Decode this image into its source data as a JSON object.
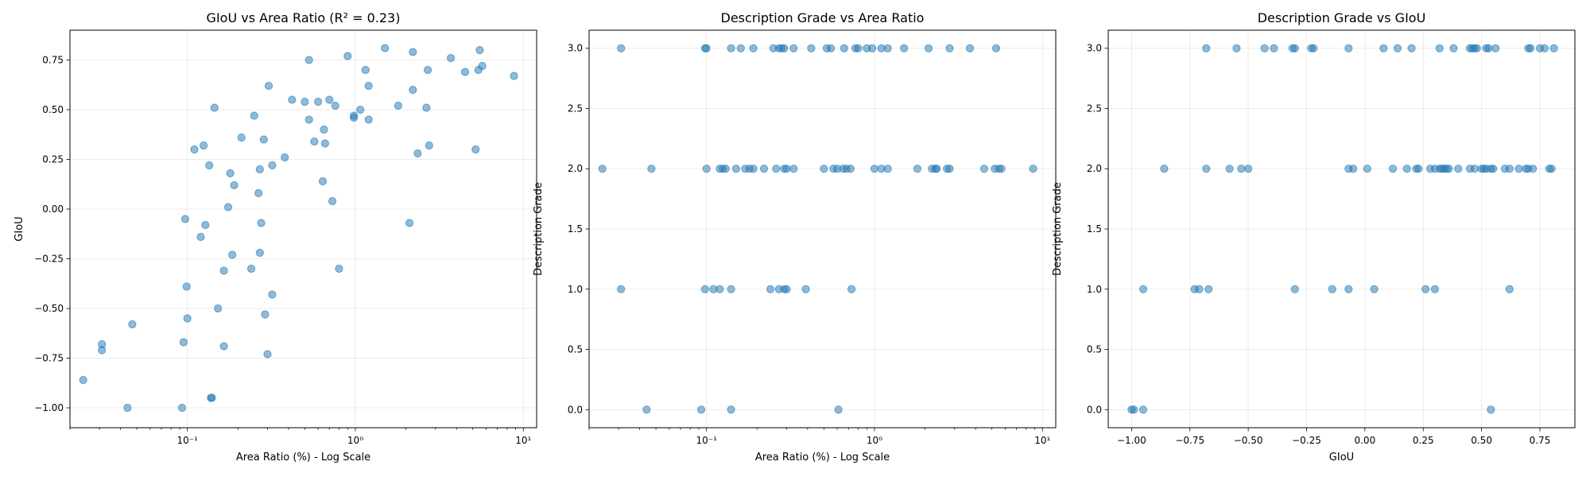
{
  "chart_data": [
    {
      "type": "scatter",
      "title": "GIoU vs Area Ratio (R² = 0.23)",
      "xlabel": "Area Ratio (%) - Log Scale",
      "ylabel": "GIoU",
      "xscale": "log",
      "xlim": [
        0.02,
        12
      ],
      "ylim": [
        -1.1,
        0.9
      ],
      "xticks": [
        0.1,
        1,
        10
      ],
      "xticklabels": [
        "10⁻¹",
        "10⁰",
        "10¹"
      ],
      "yticks": [
        -1.0,
        -0.75,
        -0.5,
        -0.25,
        0.0,
        0.25,
        0.5,
        0.75
      ],
      "yticklabels": [
        "−1.00",
        "−0.75",
        "−0.50",
        "−0.25",
        "0.00",
        "0.25",
        "0.50",
        "0.75"
      ],
      "grid": true,
      "color": "#1f77b4",
      "points": [
        [
          0.024,
          -0.86
        ],
        [
          0.031,
          -0.68
        ],
        [
          0.031,
          -0.71
        ],
        [
          0.044,
          -1.0
        ],
        [
          0.047,
          -0.58
        ],
        [
          0.093,
          -1.0
        ],
        [
          0.095,
          -0.67
        ],
        [
          0.097,
          -0.05
        ],
        [
          0.099,
          -0.39
        ],
        [
          0.1,
          -0.55
        ],
        [
          0.11,
          0.3
        ],
        [
          0.12,
          -0.14
        ],
        [
          0.125,
          0.32
        ],
        [
          0.128,
          -0.08
        ],
        [
          0.135,
          0.22
        ],
        [
          0.138,
          -0.95
        ],
        [
          0.14,
          -0.95
        ],
        [
          0.145,
          0.51
        ],
        [
          0.152,
          -0.5
        ],
        [
          0.165,
          -0.31
        ],
        [
          0.165,
          -0.69
        ],
        [
          0.175,
          0.01
        ],
        [
          0.18,
          0.18
        ],
        [
          0.185,
          -0.23
        ],
        [
          0.19,
          0.12
        ],
        [
          0.21,
          0.36
        ],
        [
          0.24,
          -0.3
        ],
        [
          0.25,
          0.47
        ],
        [
          0.265,
          0.08
        ],
        [
          0.27,
          -0.22
        ],
        [
          0.27,
          0.2
        ],
        [
          0.275,
          -0.07
        ],
        [
          0.285,
          0.35
        ],
        [
          0.29,
          -0.53
        ],
        [
          0.3,
          -0.73
        ],
        [
          0.305,
          0.62
        ],
        [
          0.32,
          -0.43
        ],
        [
          0.32,
          0.22
        ],
        [
          0.38,
          0.26
        ],
        [
          0.42,
          0.55
        ],
        [
          0.5,
          0.54
        ],
        [
          0.53,
          0.75
        ],
        [
          0.53,
          0.45
        ],
        [
          0.57,
          0.34
        ],
        [
          0.6,
          0.54
        ],
        [
          0.64,
          0.14
        ],
        [
          0.65,
          0.4
        ],
        [
          0.66,
          0.33
        ],
        [
          0.7,
          0.55
        ],
        [
          0.73,
          0.04
        ],
        [
          0.76,
          0.52
        ],
        [
          0.8,
          -0.3
        ],
        [
          0.9,
          0.77
        ],
        [
          0.98,
          0.47
        ],
        [
          0.98,
          0.46
        ],
        [
          1.07,
          0.5
        ],
        [
          1.15,
          0.7
        ],
        [
          1.2,
          0.45
        ],
        [
          1.2,
          0.62
        ],
        [
          1.5,
          0.81
        ],
        [
          1.8,
          0.52
        ],
        [
          2.1,
          -0.07
        ],
        [
          2.2,
          0.79
        ],
        [
          2.2,
          0.6
        ],
        [
          2.35,
          0.28
        ],
        [
          2.65,
          0.51
        ],
        [
          2.7,
          0.7
        ],
        [
          2.75,
          0.32
        ],
        [
          3.7,
          0.76
        ],
        [
          4.5,
          0.69
        ],
        [
          5.2,
          0.3
        ],
        [
          5.4,
          0.7
        ],
        [
          5.5,
          0.8
        ],
        [
          5.7,
          0.72
        ],
        [
          8.8,
          0.67
        ]
      ]
    },
    {
      "type": "scatter",
      "title": "Description Grade vs Area Ratio",
      "xlabel": "Area Ratio (%) - Log Scale",
      "ylabel": "Description Grade",
      "xscale": "log",
      "xlim": [
        0.02,
        12
      ],
      "ylim": [
        -0.15,
        3.15
      ],
      "xticks": [
        0.1,
        1,
        10
      ],
      "xticklabels": [
        "10⁻¹",
        "10⁰",
        "10¹"
      ],
      "yticks": [
        0.0,
        0.5,
        1.0,
        1.5,
        2.0,
        2.5,
        3.0
      ],
      "yticklabels": [
        "0.0",
        "0.5",
        "1.0",
        "1.5",
        "2.0",
        "2.5",
        "3.0"
      ],
      "grid": true,
      "color": "#1f77b4",
      "points": [
        [
          0.031,
          3
        ],
        [
          0.098,
          3
        ],
        [
          0.1,
          3
        ],
        [
          0.14,
          3
        ],
        [
          0.16,
          3
        ],
        [
          0.19,
          3
        ],
        [
          0.25,
          3
        ],
        [
          0.27,
          3
        ],
        [
          0.28,
          3
        ],
        [
          0.29,
          3
        ],
        [
          0.33,
          3
        ],
        [
          0.42,
          3
        ],
        [
          0.52,
          3
        ],
        [
          0.55,
          3
        ],
        [
          0.66,
          3
        ],
        [
          0.77,
          3
        ],
        [
          0.8,
          3
        ],
        [
          0.9,
          3
        ],
        [
          0.97,
          3
        ],
        [
          1.1,
          3
        ],
        [
          1.2,
          3
        ],
        [
          1.5,
          3
        ],
        [
          2.1,
          3
        ],
        [
          2.8,
          3
        ],
        [
          3.7,
          3
        ],
        [
          5.3,
          3
        ],
        [
          0.024,
          2
        ],
        [
          0.047,
          2
        ],
        [
          0.1,
          2
        ],
        [
          0.12,
          2
        ],
        [
          0.125,
          2
        ],
        [
          0.13,
          2
        ],
        [
          0.15,
          2
        ],
        [
          0.17,
          2
        ],
        [
          0.18,
          2
        ],
        [
          0.19,
          2
        ],
        [
          0.22,
          2
        ],
        [
          0.26,
          2
        ],
        [
          0.29,
          2
        ],
        [
          0.3,
          2
        ],
        [
          0.33,
          2
        ],
        [
          0.5,
          2
        ],
        [
          0.57,
          2
        ],
        [
          0.6,
          2
        ],
        [
          0.65,
          2
        ],
        [
          0.68,
          2
        ],
        [
          0.72,
          2
        ],
        [
          1.0,
          2
        ],
        [
          1.1,
          2
        ],
        [
          1.2,
          2
        ],
        [
          1.8,
          2
        ],
        [
          2.2,
          2
        ],
        [
          2.3,
          2
        ],
        [
          2.35,
          2
        ],
        [
          2.7,
          2
        ],
        [
          2.8,
          2
        ],
        [
          4.5,
          2
        ],
        [
          5.2,
          2
        ],
        [
          5.5,
          2
        ],
        [
          5.7,
          2
        ],
        [
          8.8,
          2
        ],
        [
          0.031,
          1
        ],
        [
          0.098,
          1
        ],
        [
          0.11,
          1
        ],
        [
          0.12,
          1
        ],
        [
          0.14,
          1
        ],
        [
          0.24,
          1
        ],
        [
          0.27,
          1
        ],
        [
          0.29,
          1
        ],
        [
          0.3,
          1
        ],
        [
          0.39,
          1
        ],
        [
          0.73,
          1
        ],
        [
          0.044,
          0
        ],
        [
          0.093,
          0
        ],
        [
          0.14,
          0
        ],
        [
          0.61,
          0
        ]
      ]
    },
    {
      "type": "scatter",
      "title": "Description Grade vs GIoU",
      "xlabel": "GIoU",
      "ylabel": "Description Grade",
      "xscale": "linear",
      "xlim": [
        -1.1,
        0.9
      ],
      "ylim": [
        -0.15,
        3.15
      ],
      "xticks": [
        -1.0,
        -0.75,
        -0.5,
        -0.25,
        0.0,
        0.25,
        0.5,
        0.75
      ],
      "xticklabels": [
        "−1.00",
        "−0.75",
        "−0.50",
        "−0.25",
        "0.00",
        "0.25",
        "0.50",
        "0.75"
      ],
      "yticks": [
        0.0,
        0.5,
        1.0,
        1.5,
        2.0,
        2.5,
        3.0
      ],
      "yticklabels": [
        "0.0",
        "0.5",
        "1.0",
        "1.5",
        "2.0",
        "2.5",
        "3.0"
      ],
      "grid": true,
      "color": "#1f77b4",
      "points": [
        [
          -0.68,
          3
        ],
        [
          -0.55,
          3
        ],
        [
          -0.43,
          3
        ],
        [
          -0.39,
          3
        ],
        [
          -0.31,
          3
        ],
        [
          -0.3,
          3
        ],
        [
          -0.23,
          3
        ],
        [
          -0.22,
          3
        ],
        [
          -0.07,
          3
        ],
        [
          0.08,
          3
        ],
        [
          0.14,
          3
        ],
        [
          0.2,
          3
        ],
        [
          0.32,
          3
        ],
        [
          0.38,
          3
        ],
        [
          0.45,
          3
        ],
        [
          0.46,
          3
        ],
        [
          0.47,
          3
        ],
        [
          0.48,
          3
        ],
        [
          0.52,
          3
        ],
        [
          0.53,
          3
        ],
        [
          0.56,
          3
        ],
        [
          0.7,
          3
        ],
        [
          0.71,
          3
        ],
        [
          0.75,
          3
        ],
        [
          0.77,
          3
        ],
        [
          0.81,
          3
        ],
        [
          -0.86,
          2
        ],
        [
          -0.68,
          2
        ],
        [
          -0.58,
          2
        ],
        [
          -0.53,
          2
        ],
        [
          -0.5,
          2
        ],
        [
          -0.07,
          2
        ],
        [
          -0.05,
          2
        ],
        [
          0.01,
          2
        ],
        [
          0.12,
          2
        ],
        [
          0.18,
          2
        ],
        [
          0.22,
          2
        ],
        [
          0.23,
          2
        ],
        [
          0.28,
          2
        ],
        [
          0.3,
          2
        ],
        [
          0.32,
          2
        ],
        [
          0.33,
          2
        ],
        [
          0.34,
          2
        ],
        [
          0.35,
          2
        ],
        [
          0.36,
          2
        ],
        [
          0.4,
          2
        ],
        [
          0.45,
          2
        ],
        [
          0.47,
          2
        ],
        [
          0.5,
          2
        ],
        [
          0.51,
          2
        ],
        [
          0.52,
          2
        ],
        [
          0.54,
          2
        ],
        [
          0.55,
          2
        ],
        [
          0.6,
          2
        ],
        [
          0.62,
          2
        ],
        [
          0.66,
          2
        ],
        [
          0.69,
          2
        ],
        [
          0.7,
          2
        ],
        [
          0.72,
          2
        ],
        [
          0.79,
          2
        ],
        [
          0.8,
          2
        ],
        [
          -0.95,
          1
        ],
        [
          -0.73,
          1
        ],
        [
          -0.71,
          1
        ],
        [
          -0.67,
          1
        ],
        [
          -0.3,
          1
        ],
        [
          -0.14,
          1
        ],
        [
          -0.07,
          1
        ],
        [
          0.04,
          1
        ],
        [
          0.26,
          1
        ],
        [
          0.3,
          1
        ],
        [
          0.62,
          1
        ],
        [
          -1.0,
          0
        ],
        [
          -0.99,
          0
        ],
        [
          -0.95,
          0
        ],
        [
          0.54,
          0
        ]
      ]
    }
  ]
}
